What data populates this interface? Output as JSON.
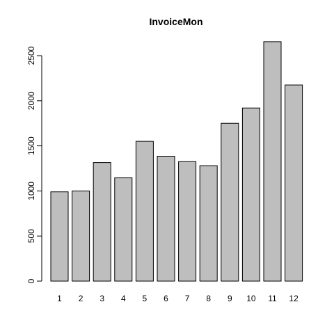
{
  "chart_data": {
    "type": "bar",
    "title": "InvoiceMon",
    "xlabel": "",
    "ylabel": "",
    "categories": [
      "1",
      "2",
      "3",
      "4",
      "5",
      "6",
      "7",
      "8",
      "9",
      "10",
      "11",
      "12"
    ],
    "values": [
      990,
      1000,
      1315,
      1145,
      1550,
      1385,
      1325,
      1280,
      1750,
      1920,
      2655,
      2175
    ],
    "ylim": [
      0,
      2655
    ],
    "yticks": [
      0,
      500,
      1000,
      1500,
      2000,
      2500
    ],
    "grid": false,
    "legend": "none",
    "colors": {
      "bar_fill": "#bebebe",
      "bar_stroke": "#000000"
    }
  }
}
